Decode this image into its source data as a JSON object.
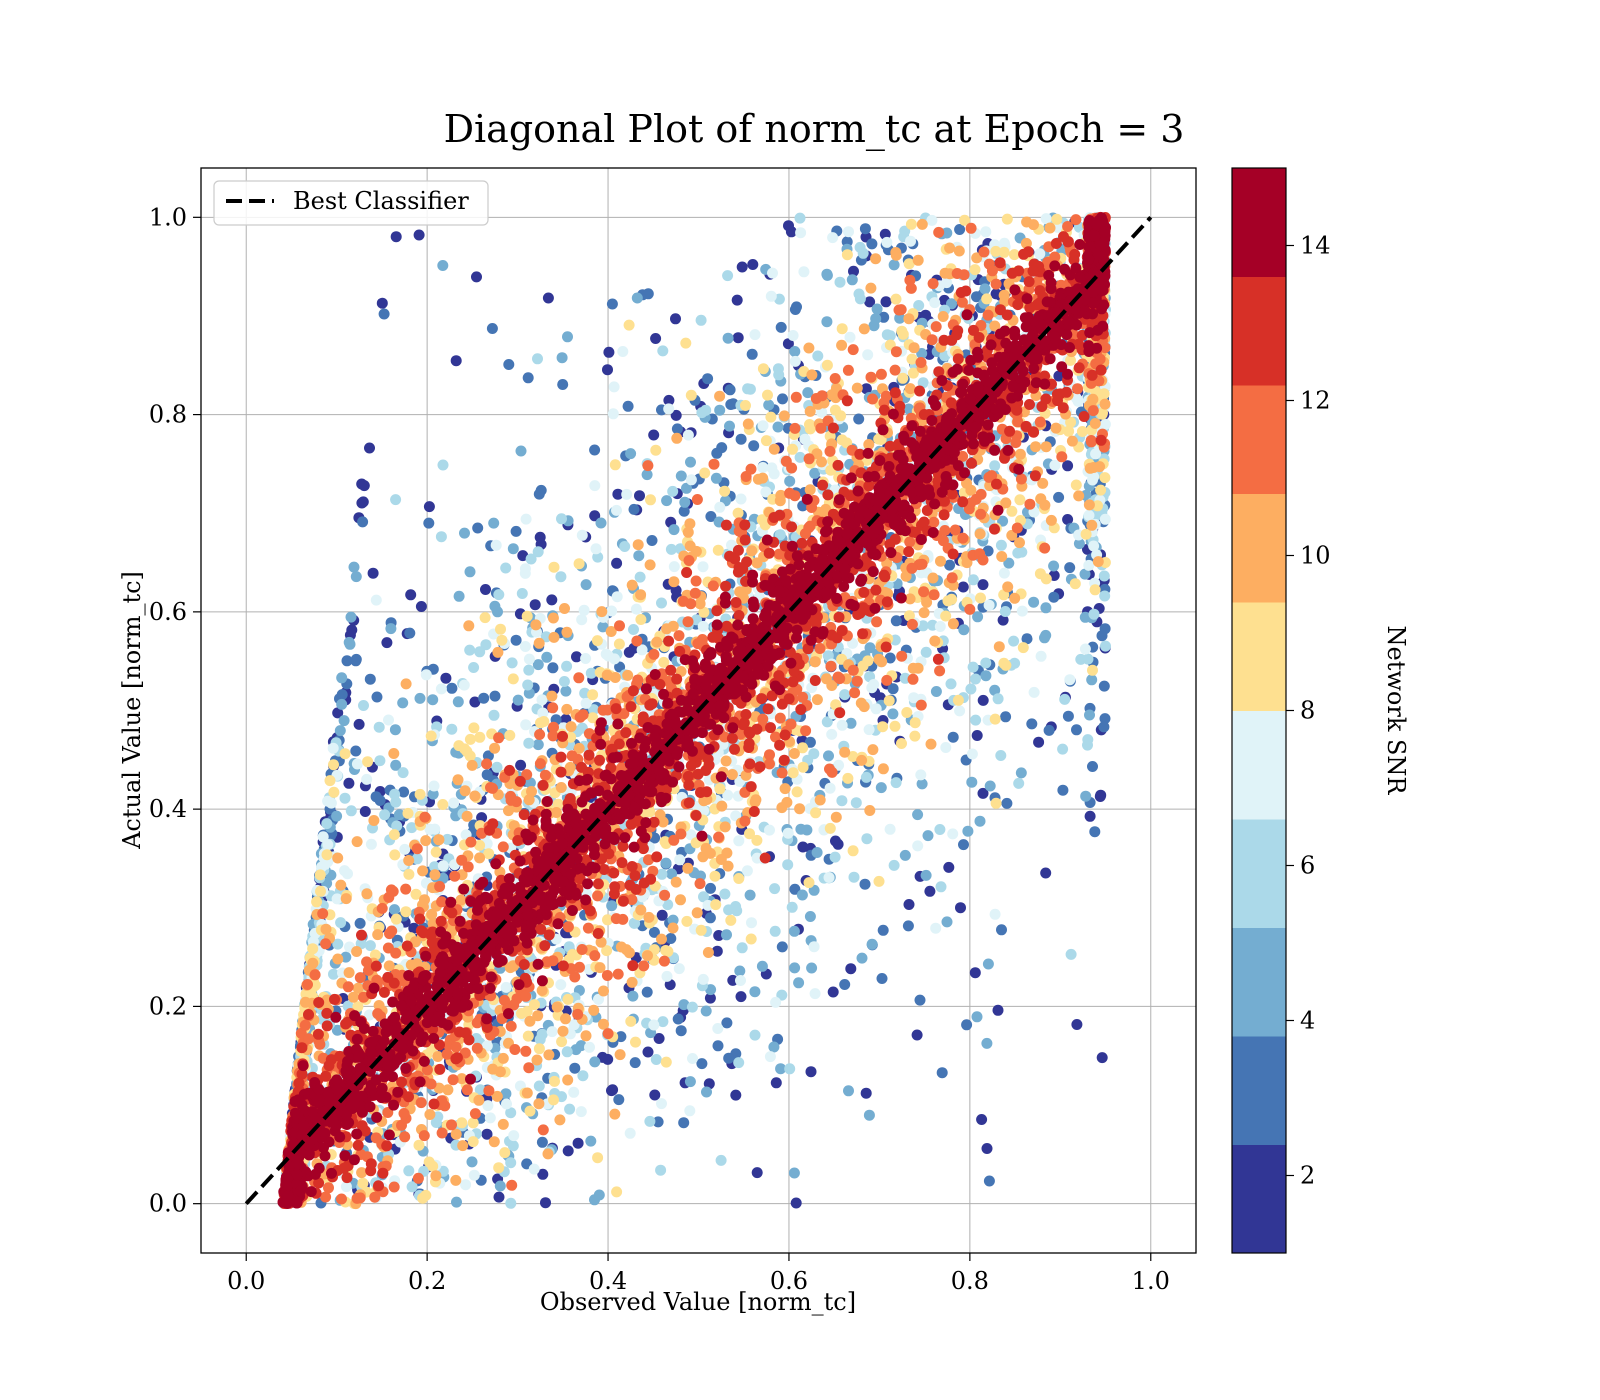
{
  "chart_data": {
    "type": "scatter",
    "title": "Diagonal Plot of norm_tc at Epoch = 3",
    "xlabel": "Observed Value [norm_tc]",
    "ylabel": "Actual Value [norm_tc]",
    "xlim": [
      -0.05,
      1.05
    ],
    "ylim": [
      -0.05,
      1.05
    ],
    "x_ticks": [
      "0.0",
      "0.2",
      "0.4",
      "0.6",
      "0.8",
      "1.0"
    ],
    "y_ticks": [
      "0.0",
      "0.2",
      "0.4",
      "0.6",
      "0.8",
      "1.0"
    ],
    "grid": true,
    "legend": {
      "position": "top-left",
      "entries": [
        "Best Classifier"
      ]
    },
    "reference_line": {
      "name": "Best Classifier",
      "from": [
        0,
        0
      ],
      "to": [
        1,
        1
      ],
      "style": "dashed",
      "color": "#000000"
    },
    "colorbar": {
      "label": "Network SNR",
      "range": [
        1,
        15
      ],
      "ticks": [
        "2",
        "4",
        "6",
        "8",
        "10",
        "12",
        "14"
      ],
      "levels": [
        1,
        2.4,
        3.8,
        5.2,
        6.6,
        8,
        9.4,
        10.8,
        12.2,
        13.6,
        15
      ],
      "colors": [
        "#313695",
        "#4575b4",
        "#74add1",
        "#abd9e9",
        "#e0f3f8",
        "#fee090",
        "#fdae61",
        "#f46d43",
        "#d73027",
        "#a50026"
      ]
    },
    "point_cloud": {
      "description_of_distribution": "dense band along the diagonal with high SNR; low-SNR points spread far off-diagonal",
      "observed_range": [
        0.04,
        0.95
      ],
      "actual_range": [
        0.0,
        1.0
      ]
    }
  }
}
